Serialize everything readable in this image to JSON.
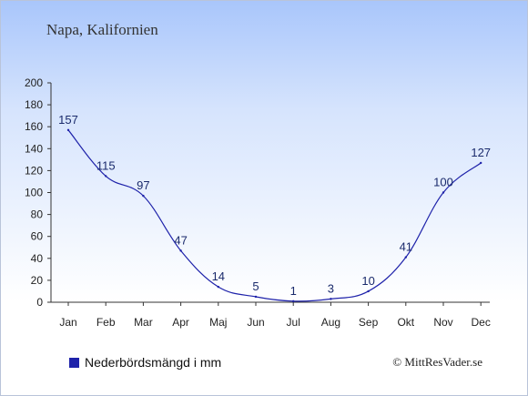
{
  "title": "Napa, Kalifornien",
  "legend": {
    "label": "Nederbördsmängd i mm",
    "swatch_color": "#1e22aa"
  },
  "copyright": "© MittResVader.se",
  "colors": {
    "line": "#1e22aa",
    "axis": "#333333"
  },
  "chart_data": {
    "type": "line",
    "categories": [
      "Jan",
      "Feb",
      "Mar",
      "Apr",
      "Maj",
      "Jun",
      "Jul",
      "Aug",
      "Sep",
      "Okt",
      "Nov",
      "Dec"
    ],
    "series": [
      {
        "name": "Nederbördsmängd i mm",
        "values": [
          157,
          115,
          97,
          47,
          14,
          5,
          1,
          3,
          10,
          41,
          100,
          127
        ]
      }
    ],
    "data_labels": [
      "157",
      "115",
      "97",
      "47",
      "14",
      "5",
      "1",
      "3",
      "10",
      "41",
      "100",
      "127"
    ],
    "y_ticks": [
      "0",
      "20",
      "40",
      "60",
      "80",
      "100",
      "120",
      "140",
      "160",
      "180",
      "200"
    ],
    "ylim": [
      0,
      200
    ],
    "grid": false,
    "legend_position": "bottom-left"
  }
}
